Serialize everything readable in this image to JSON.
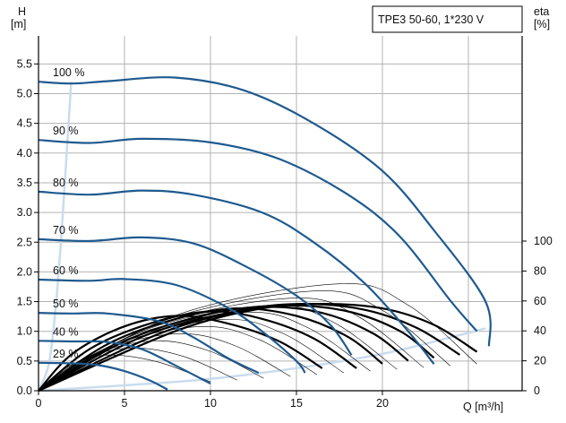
{
  "chart_data": {
    "type": "line",
    "title": "TPE3 50-60, 1*230 V",
    "xlabel": "Q [m³/h]",
    "ylabel_left": [
      "H",
      "[m]"
    ],
    "ylabel_right": [
      "eta",
      "[%]"
    ],
    "xlim": [
      0,
      28
    ],
    "ylim": [
      0,
      5.5
    ],
    "y2lim": [
      0,
      100
    ],
    "grid": true,
    "x_ticks": [
      "0",
      "5",
      "10",
      "15",
      "20"
    ],
    "y_ticks": [
      "0.0",
      "0.5",
      "1.0",
      "1.5",
      "2.0",
      "2.5",
      "3.0",
      "3.5",
      "4.0",
      "4.5",
      "5.0",
      "5.5"
    ],
    "y2_ticks": [
      "0",
      "20",
      "40",
      "60",
      "80",
      "100"
    ],
    "colors": {
      "pump_curve": "#1f5a8f",
      "efficiency_curve": "#000000",
      "system_curve": "#c9dcef",
      "grid": "#b3b3b3"
    },
    "pump_curves": [
      {
        "name": "100 %",
        "points": [
          [
            0,
            5.2
          ],
          [
            2,
            5.17
          ],
          [
            4,
            5.21
          ],
          [
            8,
            5.27
          ],
          [
            12,
            5.05
          ],
          [
            16,
            4.5
          ],
          [
            20,
            3.7
          ],
          [
            23,
            2.7
          ],
          [
            26,
            1.5
          ],
          [
            26.2,
            0.75
          ]
        ]
      },
      {
        "name": "90 %",
        "points": [
          [
            0,
            4.22
          ],
          [
            3,
            4.17
          ],
          [
            6,
            4.24
          ],
          [
            10,
            4.18
          ],
          [
            14,
            3.9
          ],
          [
            18,
            3.3
          ],
          [
            21,
            2.6
          ],
          [
            24,
            1.5
          ],
          [
            25.5,
            1.0
          ]
        ]
      },
      {
        "name": "80 %",
        "points": [
          [
            0,
            3.35
          ],
          [
            3,
            3.3
          ],
          [
            6,
            3.37
          ],
          [
            9,
            3.3
          ],
          [
            13,
            3.0
          ],
          [
            16,
            2.5
          ],
          [
            19,
            1.8
          ],
          [
            21.5,
            1.0
          ],
          [
            23,
            0.45
          ]
        ]
      },
      {
        "name": "70 %",
        "points": [
          [
            0,
            2.55
          ],
          [
            3,
            2.52
          ],
          [
            6,
            2.58
          ],
          [
            9,
            2.48
          ],
          [
            12,
            2.1
          ],
          [
            15,
            1.6
          ],
          [
            17,
            1.1
          ],
          [
            18.2,
            0.6
          ]
        ]
      },
      {
        "name": "60 %",
        "points": [
          [
            0,
            1.87
          ],
          [
            3,
            1.85
          ],
          [
            5,
            1.88
          ],
          [
            8,
            1.78
          ],
          [
            11,
            1.4
          ],
          [
            13,
            1.0
          ],
          [
            15,
            0.5
          ],
          [
            15.5,
            0.3
          ]
        ]
      },
      {
        "name": "50 %",
        "points": [
          [
            0,
            1.31
          ],
          [
            2,
            1.3
          ],
          [
            4,
            1.3
          ],
          [
            7,
            1.17
          ],
          [
            9,
            0.9
          ],
          [
            11,
            0.55
          ],
          [
            12.8,
            0.3
          ]
        ]
      },
      {
        "name": "40 %",
        "points": [
          [
            0,
            0.84
          ],
          [
            2,
            0.83
          ],
          [
            4,
            0.82
          ],
          [
            6,
            0.7
          ],
          [
            8,
            0.42
          ],
          [
            10,
            0.12
          ]
        ]
      },
      {
        "name": "29 %",
        "points": [
          [
            0,
            0.47
          ],
          [
            2,
            0.46
          ],
          [
            3.5,
            0.43
          ],
          [
            5,
            0.33
          ],
          [
            6.5,
            0.17
          ],
          [
            7.5,
            0.02
          ]
        ]
      }
    ],
    "efficiency_curves": [
      {
        "points": [
          [
            0,
            0
          ],
          [
            2,
            25
          ],
          [
            5,
            43
          ],
          [
            8,
            50
          ],
          [
            11,
            45
          ],
          [
            14,
            33
          ],
          [
            16.5,
            15
          ]
        ]
      },
      {
        "points": [
          [
            0,
            0
          ],
          [
            3,
            28
          ],
          [
            6.5,
            45
          ],
          [
            10,
            53
          ],
          [
            13,
            48
          ],
          [
            16,
            35
          ],
          [
            18.5,
            15
          ]
        ]
      },
      {
        "points": [
          [
            0,
            0
          ],
          [
            4,
            31
          ],
          [
            8,
            48
          ],
          [
            11.5,
            55
          ],
          [
            15,
            50
          ],
          [
            18,
            36
          ],
          [
            20,
            18
          ]
        ]
      },
      {
        "points": [
          [
            0,
            0
          ],
          [
            5,
            33
          ],
          [
            9.5,
            50
          ],
          [
            13,
            56
          ],
          [
            16.5,
            52
          ],
          [
            19.5,
            38
          ],
          [
            21.5,
            20
          ]
        ]
      },
      {
        "points": [
          [
            0,
            0
          ],
          [
            6,
            36
          ],
          [
            11,
            52
          ],
          [
            14.5,
            57
          ],
          [
            18,
            53
          ],
          [
            21,
            40
          ],
          [
            23,
            22
          ]
        ]
      },
      {
        "points": [
          [
            0,
            0
          ],
          [
            7,
            38
          ],
          [
            12,
            54
          ],
          [
            15.5,
            58
          ],
          [
            19,
            54
          ],
          [
            22,
            42
          ],
          [
            24.5,
            24
          ]
        ]
      },
      {
        "points": [
          [
            0,
            0
          ],
          [
            8,
            40
          ],
          [
            13,
            55
          ],
          [
            16.5,
            58
          ],
          [
            20,
            55
          ],
          [
            23,
            44
          ],
          [
            25.5,
            26
          ]
        ]
      }
    ],
    "system_curve": {
      "points": [
        [
          0,
          0
        ],
        [
          5,
          0.09
        ],
        [
          10,
          0.2
        ],
        [
          15,
          0.38
        ],
        [
          20,
          0.62
        ],
        [
          24,
          0.9
        ],
        [
          26,
          1.05
        ]
      ]
    },
    "control_curve": {
      "points": [
        [
          0,
          0
        ],
        [
          0.6,
          0.45
        ],
        [
          1.0,
          1.4
        ],
        [
          1.3,
          2.5
        ],
        [
          1.55,
          3.6
        ],
        [
          1.75,
          4.5
        ],
        [
          1.9,
          5.2
        ]
      ]
    }
  }
}
